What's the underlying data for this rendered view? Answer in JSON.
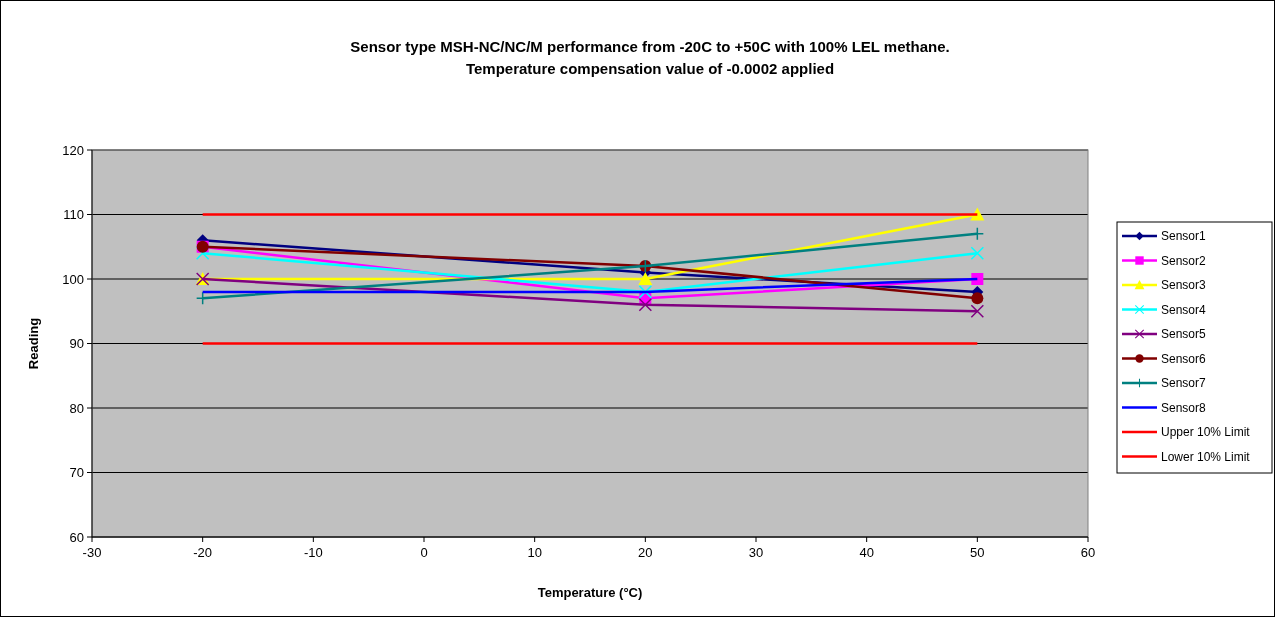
{
  "chart_data": {
    "type": "line",
    "title": "Sensor type MSH-NC/NC/M performance from -20C to +50C with 100% LEL methane.\nTemperature compensation value of -0.0002 applied",
    "xlabel": "Temperature (°C)",
    "ylabel": "Reading",
    "x": [
      -20,
      20,
      50
    ],
    "series": [
      {
        "name": "Sensor1",
        "color": "#000080",
        "marker": "diamond",
        "values": [
          106,
          101,
          98
        ]
      },
      {
        "name": "Sensor2",
        "color": "#ff00ff",
        "marker": "square",
        "values": [
          105,
          97,
          100
        ]
      },
      {
        "name": "Sensor3",
        "color": "#ffff00",
        "marker": "triangle",
        "values": [
          100,
          100,
          110
        ]
      },
      {
        "name": "Sensor4",
        "color": "#00ffff",
        "marker": "cross",
        "values": [
          104,
          98,
          104
        ]
      },
      {
        "name": "Sensor5",
        "color": "#800080",
        "marker": "cross",
        "values": [
          100,
          96,
          95
        ]
      },
      {
        "name": "Sensor6",
        "color": "#800000",
        "marker": "circle",
        "values": [
          105,
          102,
          97
        ]
      },
      {
        "name": "Sensor7",
        "color": "#008080",
        "marker": "plus",
        "values": [
          97,
          102,
          107
        ]
      },
      {
        "name": "Sensor8",
        "color": "#0000ff",
        "marker": "none",
        "values": [
          98,
          98,
          100
        ]
      },
      {
        "name": "Upper 10% Limit",
        "color": "#ff0000",
        "marker": "none",
        "values": [
          110,
          110,
          110
        ]
      },
      {
        "name": "Lower 10% Limit",
        "color": "#ff0000",
        "marker": "none",
        "values": [
          90,
          90,
          90
        ]
      }
    ],
    "xlim": [
      -30,
      60
    ],
    "xticks": [
      -30,
      -20,
      -10,
      0,
      10,
      20,
      30,
      40,
      50,
      60
    ],
    "ylim": [
      60,
      120
    ],
    "yticks": [
      60,
      70,
      80,
      90,
      100,
      110,
      120
    ],
    "grid": "y",
    "legend": "right"
  }
}
